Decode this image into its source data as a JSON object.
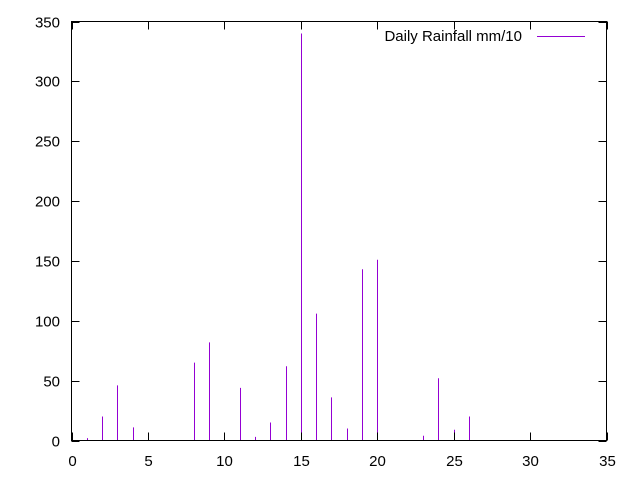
{
  "chart_data": {
    "type": "bar",
    "legend_position": "top-right",
    "grid": false,
    "xlim": [
      0,
      35
    ],
    "ylim": [
      0,
      350
    ],
    "xticks": [
      0,
      5,
      10,
      15,
      20,
      25,
      30,
      35
    ],
    "yticks": [
      0,
      50,
      100,
      150,
      200,
      250,
      300,
      350
    ],
    "series": [
      {
        "name": "Daily Rainfall mm/10",
        "color": "#9400d3",
        "x": [
          1,
          2,
          3,
          4,
          5,
          6,
          7,
          8,
          9,
          10,
          11,
          12,
          13,
          14,
          15,
          16,
          17,
          18,
          19,
          20,
          21,
          22,
          23,
          24,
          25,
          26,
          27,
          28,
          29,
          30,
          31
        ],
        "values": [
          2,
          20,
          46,
          11,
          3,
          0,
          0,
          65,
          82,
          5,
          44,
          3,
          15,
          62,
          340,
          106,
          36,
          10,
          143,
          151,
          0,
          0,
          4,
          52,
          9,
          20,
          0,
          0,
          0,
          0,
          0
        ]
      }
    ]
  }
}
